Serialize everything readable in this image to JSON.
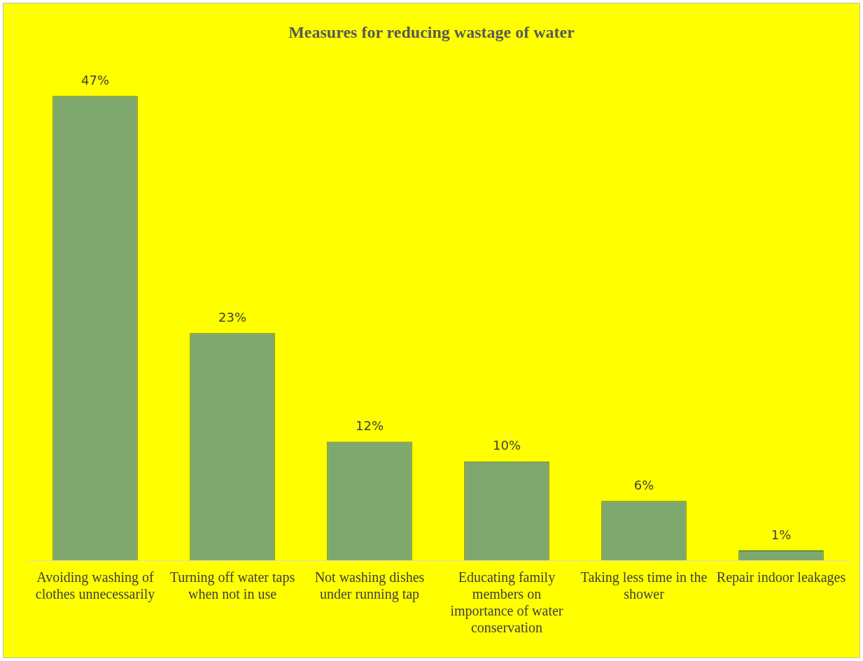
{
  "chart_data": {
    "type": "bar",
    "title": "Measures for reducing wastage of water",
    "categories": [
      "Avoiding washing of clothes unnecessarily",
      "Turning off water taps when not in use",
      "Not washing dishes under running tap",
      "Educating family members on importance of water conservation",
      "Taking less time in the shower",
      "Repair indoor leakages"
    ],
    "values": [
      47,
      23,
      12,
      10,
      6,
      1
    ],
    "value_labels": [
      "47%",
      "23%",
      "12%",
      "10%",
      "6%",
      "1%"
    ],
    "color": "#7fa86f",
    "grid": false,
    "legend": false
  }
}
